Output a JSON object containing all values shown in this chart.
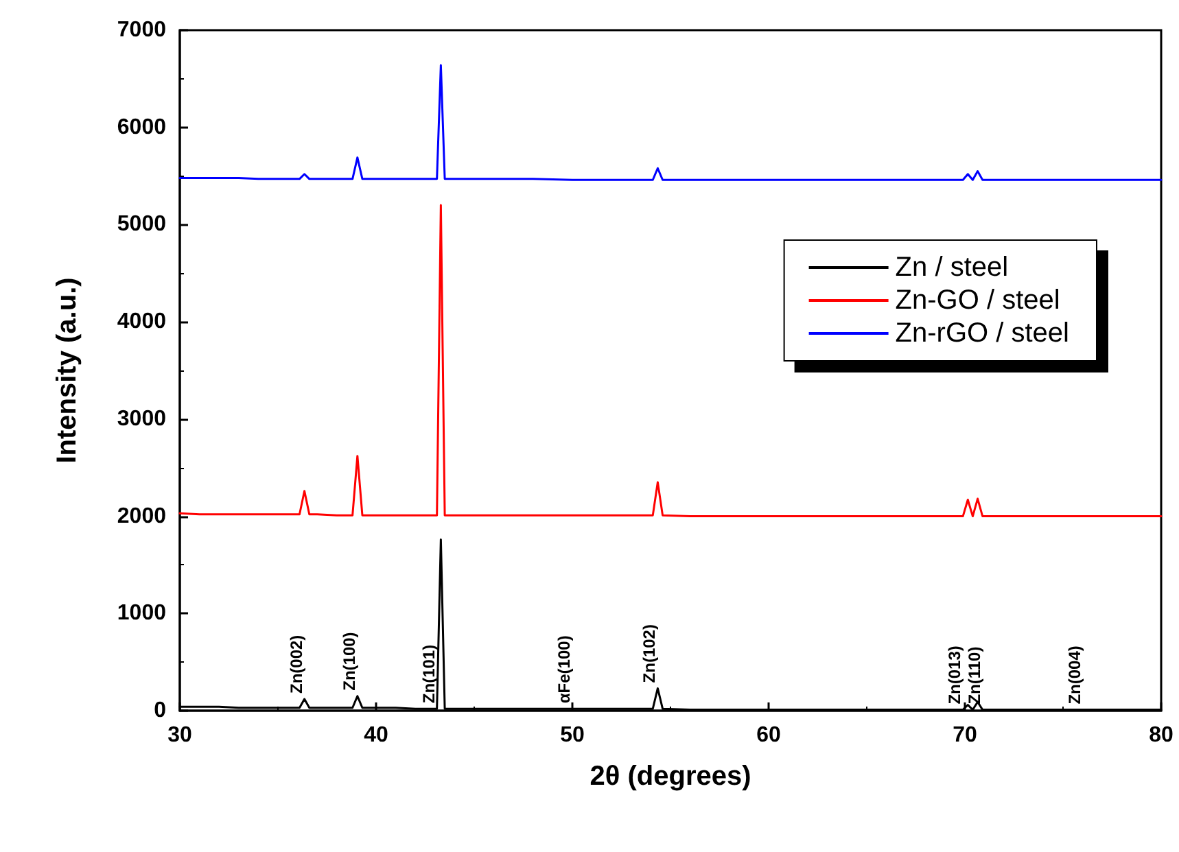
{
  "chart_data": {
    "type": "line",
    "xlabel": "2θ (degrees)",
    "ylabel": "Intensity (a.u.)",
    "x": [
      30,
      31,
      32,
      33,
      34,
      35,
      36,
      36.1,
      36.35,
      36.6,
      37,
      38,
      38.8,
      39.05,
      39.3,
      40,
      41,
      42,
      43.1,
      43.3,
      43.5,
      44,
      46,
      48,
      50,
      52,
      54.1,
      54.35,
      54.6,
      56,
      60,
      64,
      68,
      69.9,
      70.15,
      70.4,
      70.65,
      70.9,
      72,
      76,
      80
    ],
    "series": [
      {
        "name": "Zn / steel",
        "color": "#000000",
        "values": [
          40,
          40,
          40,
          30,
          30,
          30,
          30,
          30,
          120,
          30,
          30,
          30,
          30,
          150,
          30,
          30,
          30,
          20,
          20,
          1760,
          20,
          20,
          20,
          20,
          20,
          20,
          20,
          230,
          20,
          10,
          10,
          10,
          10,
          10,
          60,
          10,
          90,
          10,
          10,
          10,
          10
        ]
      },
      {
        "name": "Zn-GO / steel",
        "color": "#ff0000",
        "values": [
          2030,
          2020,
          2020,
          2020,
          2020,
          2020,
          2020,
          2020,
          2260,
          2020,
          2020,
          2010,
          2010,
          2620,
          2010,
          2010,
          2010,
          2010,
          2010,
          5200,
          2010,
          2010,
          2010,
          2010,
          2010,
          2010,
          2010,
          2350,
          2010,
          2000,
          2000,
          2000,
          2000,
          2000,
          2170,
          2000,
          2180,
          2000,
          2000,
          2000,
          2000
        ]
      },
      {
        "name": "Zn-rGO / steel",
        "color": "#0000ff",
        "values": [
          5480,
          5480,
          5480,
          5480,
          5470,
          5470,
          5470,
          5470,
          5520,
          5470,
          5470,
          5470,
          5470,
          5690,
          5470,
          5470,
          5470,
          5470,
          5470,
          6640,
          5470,
          5470,
          5470,
          5470,
          5460,
          5460,
          5460,
          5580,
          5460,
          5460,
          5460,
          5460,
          5460,
          5460,
          5520,
          5460,
          5550,
          5460,
          5460,
          5460,
          5460
        ]
      }
    ],
    "xlim": [
      30,
      80
    ],
    "xticks": [
      30,
      40,
      50,
      60,
      70,
      80
    ],
    "ylim": [
      0,
      7000
    ],
    "yticks": [
      0,
      1000,
      2000,
      3000,
      4000,
      5000,
      6000,
      7000
    ],
    "annotations": [
      {
        "text": "Zn(002)",
        "x": 36.35,
        "y": 120
      },
      {
        "text": "Zn(100)",
        "x": 39.05,
        "y": 150
      },
      {
        "text": "Zn(101)",
        "x": 43.1,
        "y": 20
      },
      {
        "text": "αFe(100)",
        "x": 50,
        "y": 20
      },
      {
        "text": "Zn(102)",
        "x": 54.35,
        "y": 230
      },
      {
        "text": "Zn(013)",
        "x": 69.9,
        "y": 10
      },
      {
        "text": "Zn(110)",
        "x": 70.9,
        "y": 10
      },
      {
        "text": "Zn(004)",
        "x": 76,
        "y": 10
      }
    ],
    "legend": "top right",
    "grid": false,
    "marker": "none",
    "line_style": "solid"
  }
}
